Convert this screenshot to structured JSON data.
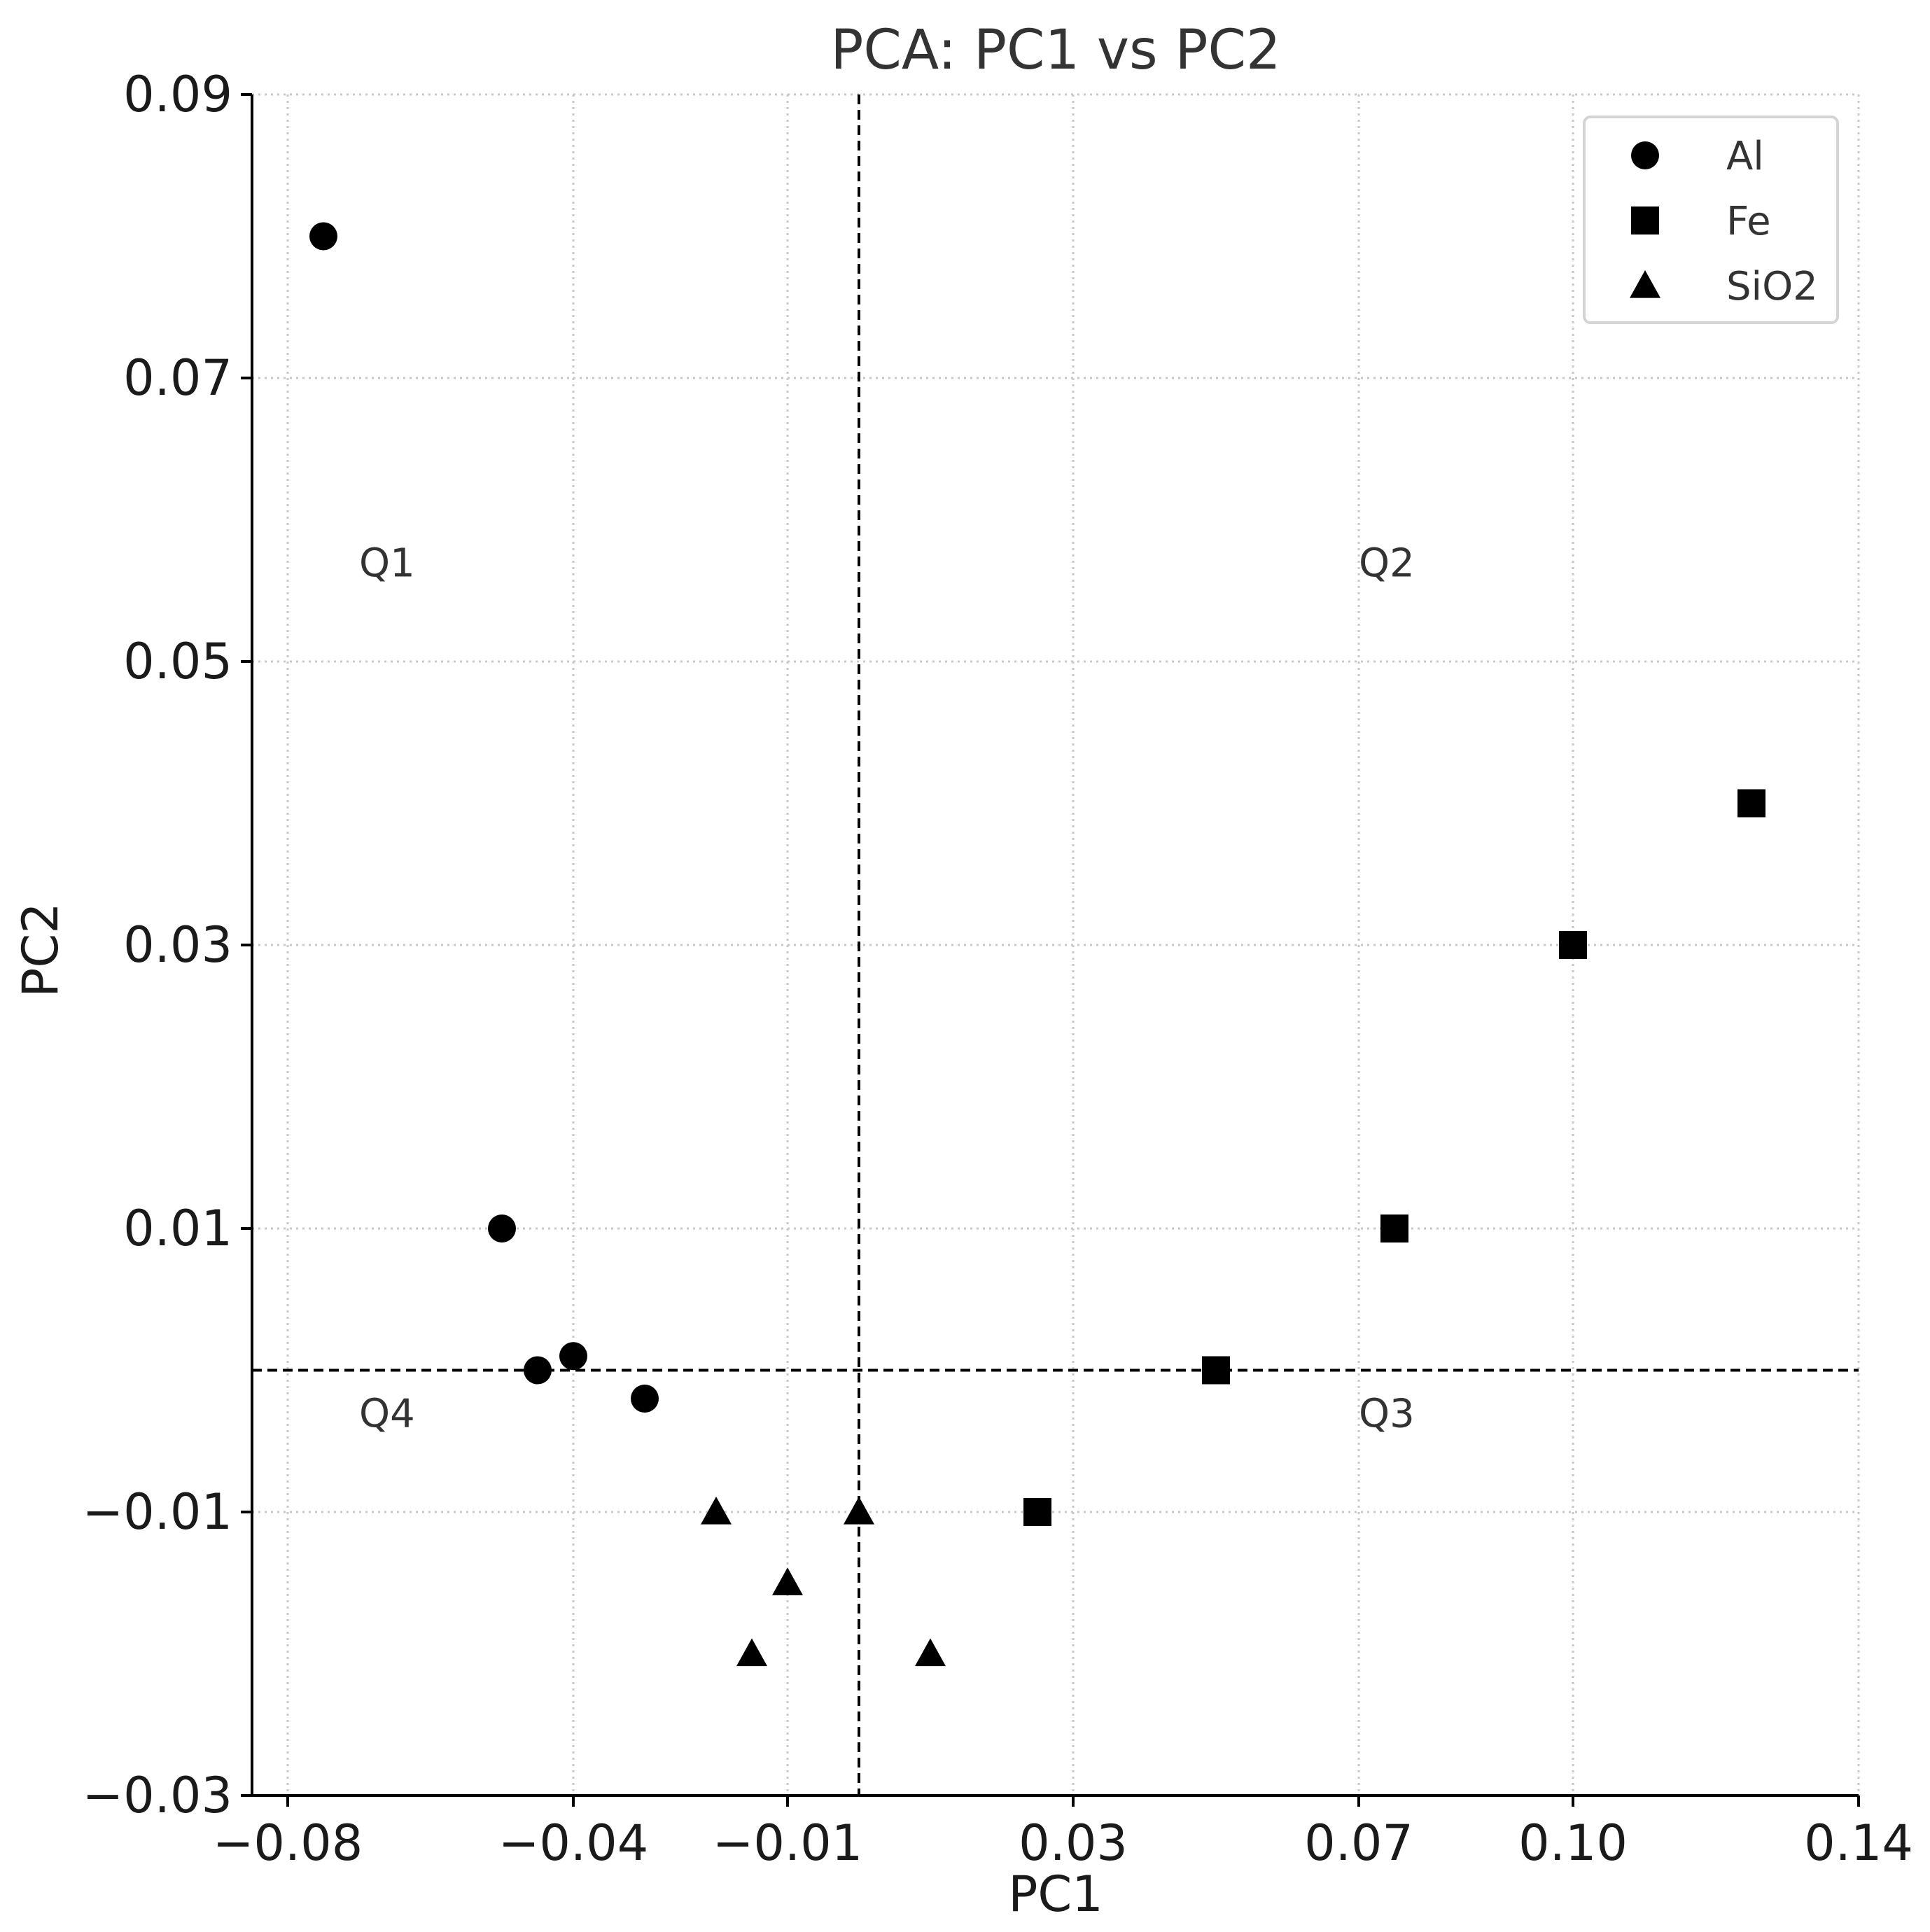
{
  "chart_data": {
    "type": "scatter",
    "title": "PCA: PC1 vs PC2",
    "xlabel": "PC1",
    "ylabel": "PC2",
    "xlim": [
      -0.085,
      0.14
    ],
    "ylim": [
      -0.03,
      0.09
    ],
    "xticks": [
      -0.08,
      -0.04,
      -0.01,
      0.03,
      0.07,
      0.1,
      0.14
    ],
    "xtick_labels": [
      "−0.08",
      "−0.04",
      "−0.01",
      "0.03",
      "0.07",
      "0.10",
      "0.14"
    ],
    "yticks": [
      0.09,
      0.07,
      0.05,
      0.03,
      0.01,
      -0.01,
      -0.03
    ],
    "ytick_labels": [
      "0.09",
      "0.07",
      "0.05",
      "0.03",
      "0.01",
      "−0.01",
      "−0.03"
    ],
    "grid": true,
    "reference_lines": {
      "x": 0.0,
      "y": 0.0
    },
    "legend_position": "top-right",
    "quadrant_labels": [
      {
        "text": "Q1",
        "x": -0.07,
        "y": 0.056
      },
      {
        "text": "Q2",
        "x": 0.07,
        "y": 0.056
      },
      {
        "text": "Q4",
        "x": -0.07,
        "y": -0.004
      },
      {
        "text": "Q3",
        "x": 0.07,
        "y": -0.004
      }
    ],
    "series": [
      {
        "name": "Al",
        "marker": "circle",
        "color": "#000000",
        "points": [
          {
            "x": -0.075,
            "y": 0.08
          },
          {
            "x": -0.05,
            "y": 0.01
          },
          {
            "x": -0.045,
            "y": 0.0
          },
          {
            "x": -0.04,
            "y": 0.001
          },
          {
            "x": -0.03,
            "y": -0.002
          }
        ]
      },
      {
        "name": "Fe",
        "marker": "square",
        "color": "#000000",
        "points": [
          {
            "x": 0.025,
            "y": -0.01
          },
          {
            "x": 0.05,
            "y": 0.0
          },
          {
            "x": 0.075,
            "y": 0.01
          },
          {
            "x": 0.1,
            "y": 0.03
          },
          {
            "x": 0.125,
            "y": 0.04
          }
        ]
      },
      {
        "name": "SiO2",
        "marker": "triangle",
        "color": "#000000",
        "points": [
          {
            "x": -0.02,
            "y": -0.01
          },
          {
            "x": -0.015,
            "y": -0.02
          },
          {
            "x": -0.01,
            "y": -0.015
          },
          {
            "x": 0.0,
            "y": -0.01
          },
          {
            "x": 0.01,
            "y": -0.02
          }
        ]
      }
    ]
  }
}
